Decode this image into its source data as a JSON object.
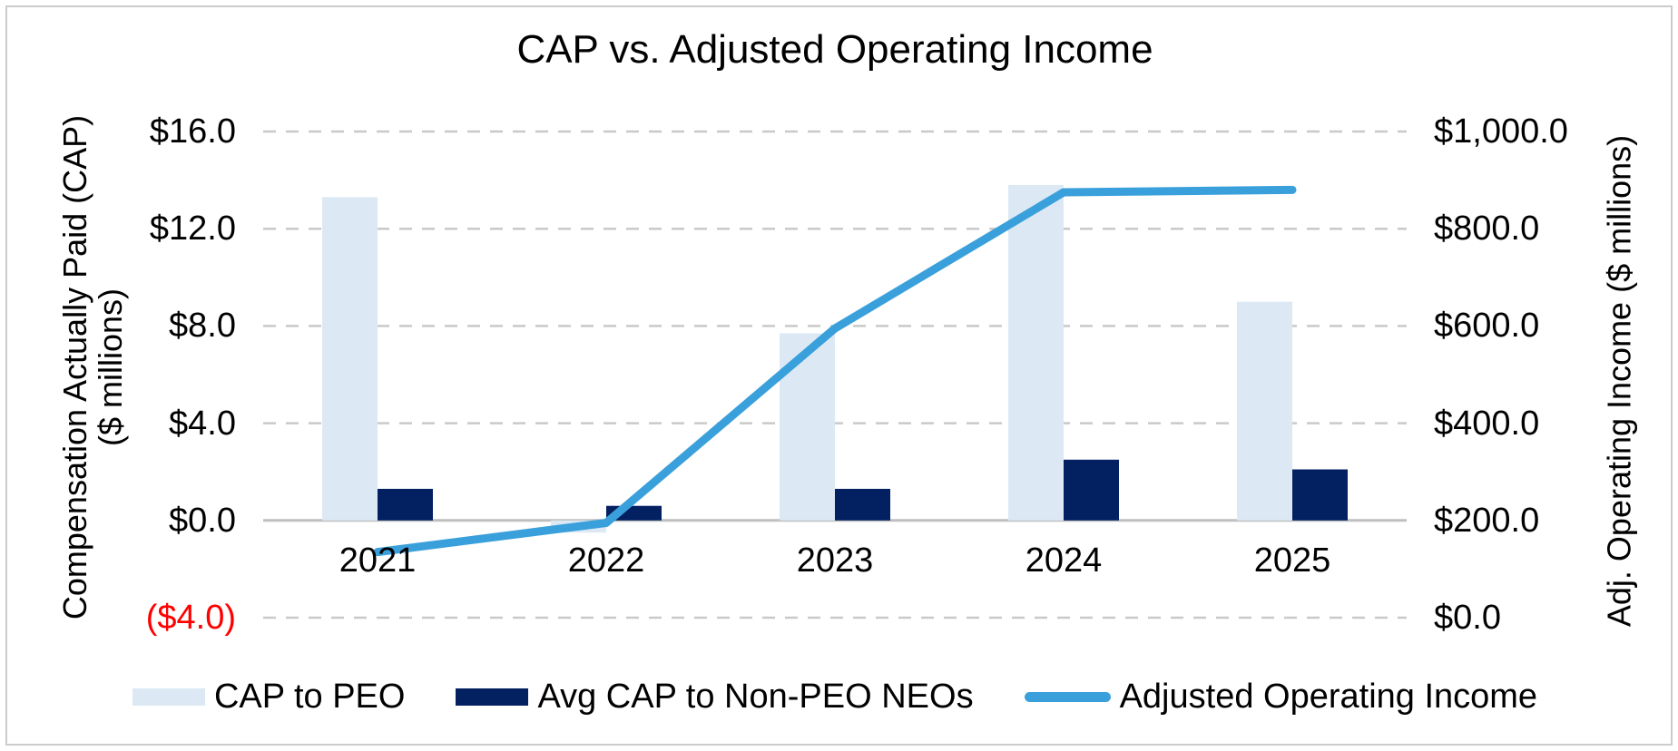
{
  "chart_data": {
    "type": "combo-bar-line",
    "title": "CAP vs. Adjusted Operating Income",
    "categories": [
      "2021",
      "2022",
      "2023",
      "2024",
      "2025"
    ],
    "series": [
      {
        "name": "CAP to PEO",
        "chart_type": "bar",
        "axis": "left",
        "color": "#DCE9F5",
        "values": [
          13.3,
          -0.5,
          7.7,
          13.8,
          9.0
        ]
      },
      {
        "name": "Avg CAP to Non-PEO NEOs",
        "chart_type": "bar",
        "axis": "left",
        "color": "#032061",
        "values": [
          1.3,
          0.6,
          1.3,
          2.5,
          2.1
        ]
      },
      {
        "name": "Adjusted Operating Income",
        "chart_type": "line",
        "axis": "right",
        "color": "#3AA0DB",
        "values": [
          135,
          195,
          595,
          875,
          880
        ]
      }
    ],
    "left_axis": {
      "title_line1": "Compensation Actually Paid (CAP)",
      "title_line2": "($ millions)",
      "lim": [
        -4,
        16
      ],
      "ticks": [
        {
          "label": "$16.0",
          "value": 16
        },
        {
          "label": "$12.0",
          "value": 12
        },
        {
          "label": "$8.0",
          "value": 8
        },
        {
          "label": "$4.0",
          "value": 4
        },
        {
          "label": "$0.0",
          "value": 0
        },
        {
          "label": "($4.0)",
          "value": -4,
          "negative": true
        }
      ]
    },
    "right_axis": {
      "title": "Adj. Operating Income ($ millions)",
      "lim": [
        0,
        1000
      ],
      "ticks": [
        {
          "label": "$1,000.0",
          "value": 1000
        },
        {
          "label": "$800.0",
          "value": 800
        },
        {
          "label": "$600.0",
          "value": 600
        },
        {
          "label": "$400.0",
          "value": 400
        },
        {
          "label": "$200.0",
          "value": 200
        },
        {
          "label": "$0.0",
          "value": 0
        }
      ]
    },
    "grid": "horizontal-dashed",
    "legend_position": "bottom",
    "negative_tick_color": "#FF0000",
    "gridline_color": "#C9C9C9",
    "zero_line_color": "#BFBFBF"
  }
}
